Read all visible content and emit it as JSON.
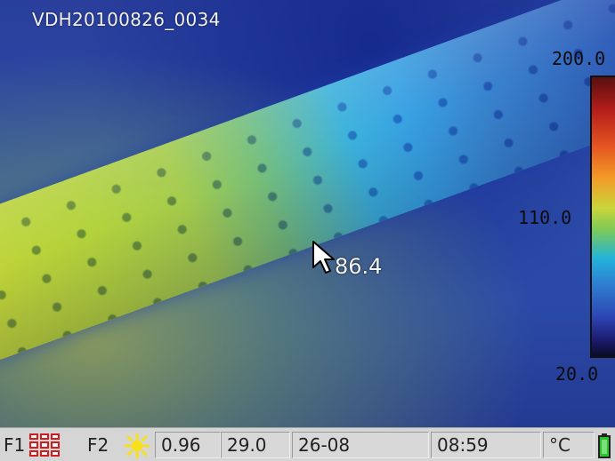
{
  "image_name": "VDH20100826_0034",
  "spot_measurement": "86.4",
  "scale": {
    "max": "200.0",
    "mid": "110.0",
    "min": "20.0"
  },
  "statusbar": {
    "f1_label": "F1",
    "f1_icon": "palette-grid-icon",
    "f2_label": "F2",
    "f2_icon": "sun-icon",
    "emissivity": "0.96",
    "background_temp": "29.0",
    "date": "26-08",
    "time": "08:59",
    "unit": "°C",
    "battery_icon": "battery-icon"
  },
  "colors": {
    "statusbar_bg": "#d5d5d5",
    "grid_icon": "#d41c1c",
    "sun_icon": "#f6e020",
    "battery": "#2fbf2f"
  }
}
